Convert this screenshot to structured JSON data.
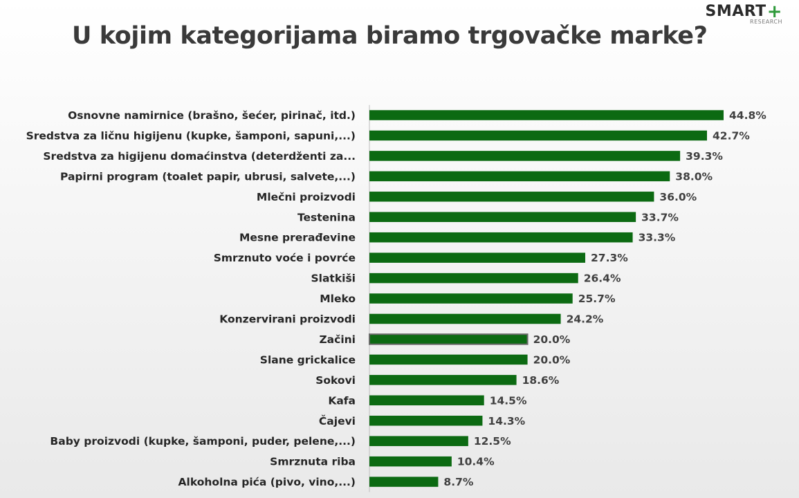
{
  "title": "U kojim kategorijama biramo trgovačke marke?",
  "logo": {
    "main": "SMART",
    "plus": "+",
    "sub": "RESEARCH"
  },
  "colors": {
    "bar": "#0c6a12",
    "bar_highlight_outline": "#6a6a6a",
    "axis": "#bdbdbd"
  },
  "chart_data": {
    "type": "bar",
    "orientation": "horizontal",
    "categories": [
      "Osnovne namirnice (brašno, šećer, pirinač, itd.)",
      "Sredstva za ličnu higijenu (kupke, šamponi, sapuni,...)",
      "Sredstva za higijenu domaćinstva (deterdženti za...",
      "Papirni program (toalet papir, ubrusi, salvete,...)",
      "Mlečni proizvodi",
      "Testenina",
      "Mesne prerađevine",
      "Smrznuto voće i povrće",
      "Slatkiši",
      "Mleko",
      "Konzervirani proizvodi",
      "Začini",
      "Slane grickalice",
      "Sokovi",
      "Kafa",
      "Čajevi",
      "Baby proizvodi (kupke, šamponi, puder, pelene,...)",
      "Smrznuta riba",
      "Alkoholna pića (pivo, vino,...)"
    ],
    "values": [
      44.8,
      42.7,
      39.3,
      38.0,
      36.0,
      33.7,
      33.3,
      27.3,
      26.4,
      25.7,
      24.2,
      20.0,
      20.0,
      18.6,
      14.5,
      14.3,
      12.5,
      10.4,
      8.7
    ],
    "value_labels": [
      "44.8%",
      "42.7%",
      "39.3%",
      "38.0%",
      "36.0%",
      "33.7%",
      "33.3%",
      "27.3%",
      "26.4%",
      "25.7%",
      "24.2%",
      "20.0%",
      "20.0%",
      "18.6%",
      "14.5%",
      "14.3%",
      "12.5%",
      "10.4%",
      "8.7%"
    ],
    "highlighted_category": "Začini",
    "unit": "%",
    "xlim": [
      0,
      44.8
    ],
    "grid": false,
    "legend": "none"
  }
}
